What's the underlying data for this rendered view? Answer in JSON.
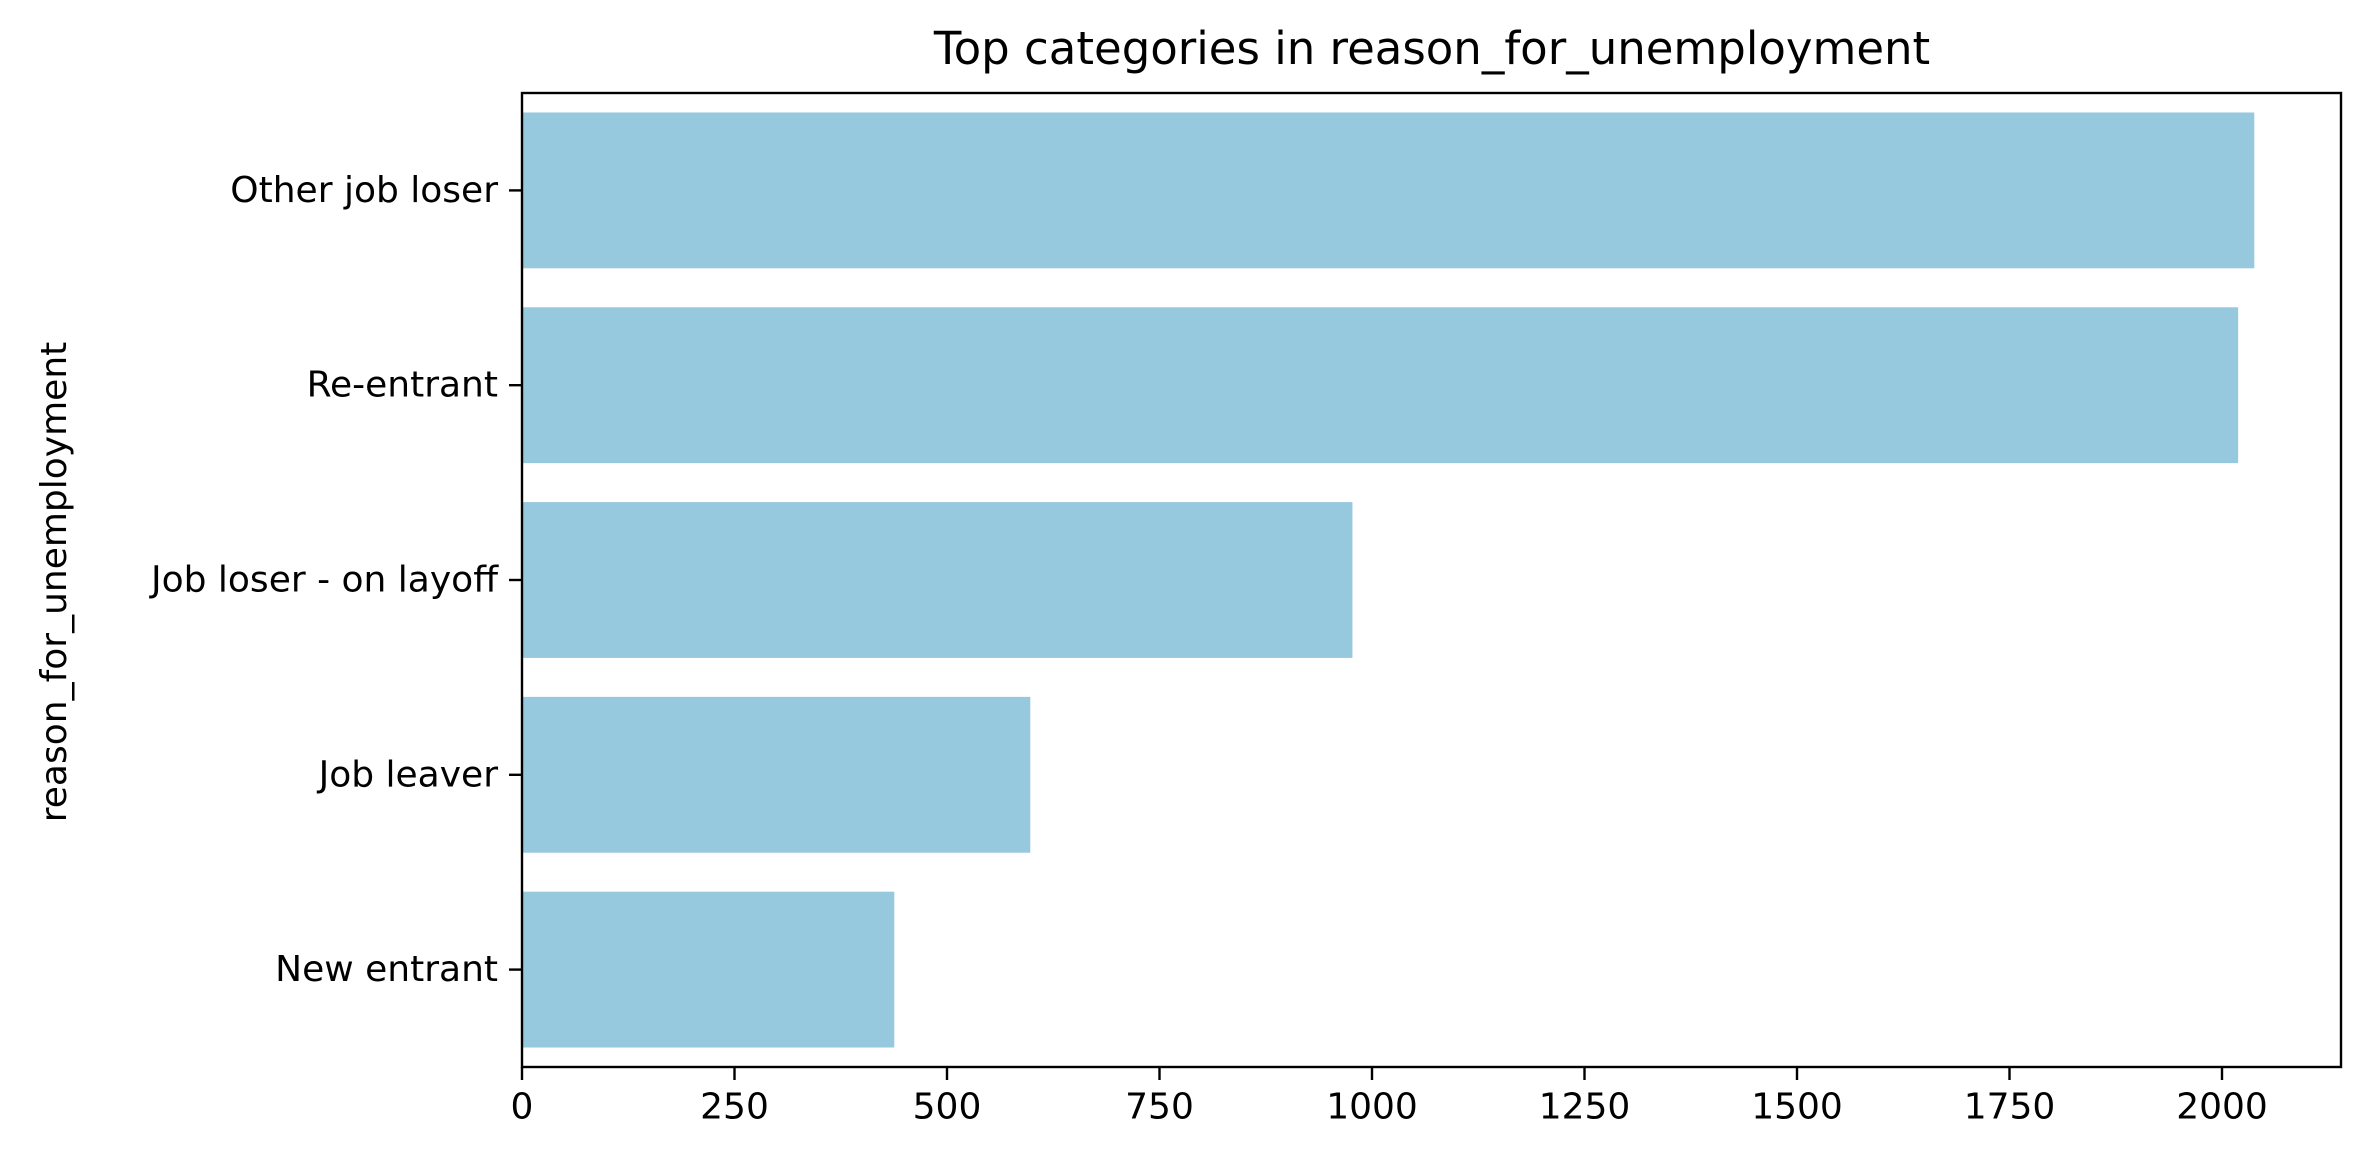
{
  "chart_data": {
    "type": "bar",
    "orientation": "horizontal",
    "title": "Top categories in reason_for_unemployment",
    "xlabel": "",
    "ylabel": "reason_for_unemployment",
    "categories": [
      "Other job loser",
      "Re-entrant",
      "Job loser - on layoff",
      "Job leaver",
      "New entrant"
    ],
    "values": [
      2038,
      2019,
      977,
      598,
      438
    ],
    "xlim": [
      0,
      2140
    ],
    "xticks": [
      0,
      250,
      500,
      750,
      1000,
      1250,
      1500,
      1750,
      2000
    ],
    "grid": false,
    "legend": "none",
    "bar_color": "#97C9DE",
    "axis_color": "#000000"
  }
}
